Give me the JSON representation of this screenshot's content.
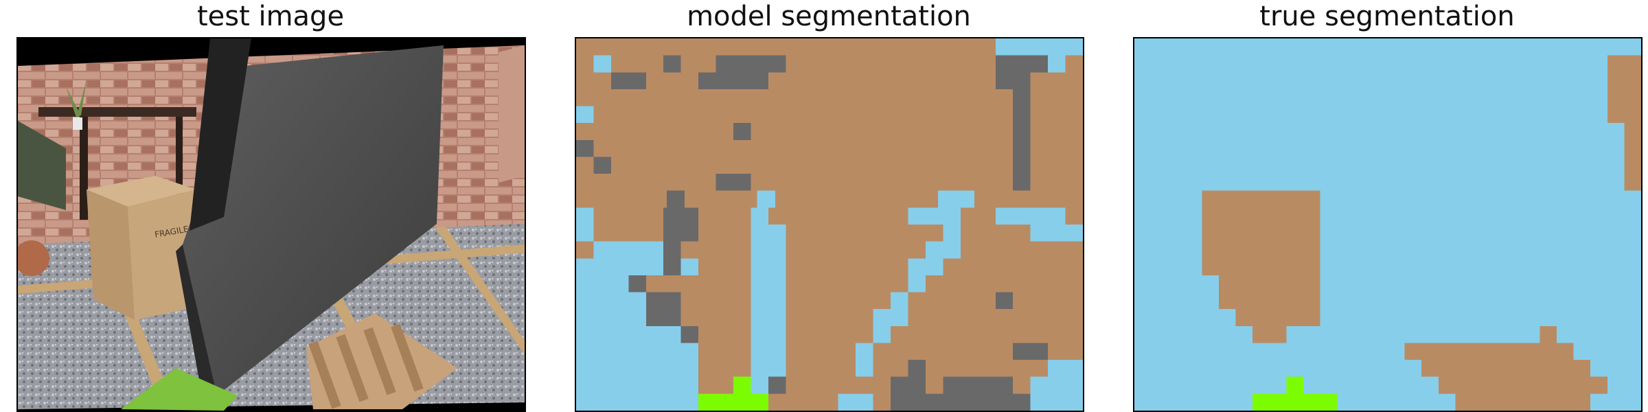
{
  "panels": [
    {
      "title": "test image"
    },
    {
      "title": "model segmentation"
    },
    {
      "title": "true segmentation"
    }
  ],
  "colors": {
    "sky_blue": "#87ceeb",
    "brown": "#b98b63",
    "gray": "#696969",
    "green": "#7cfc00",
    "black": "#000000"
  }
}
